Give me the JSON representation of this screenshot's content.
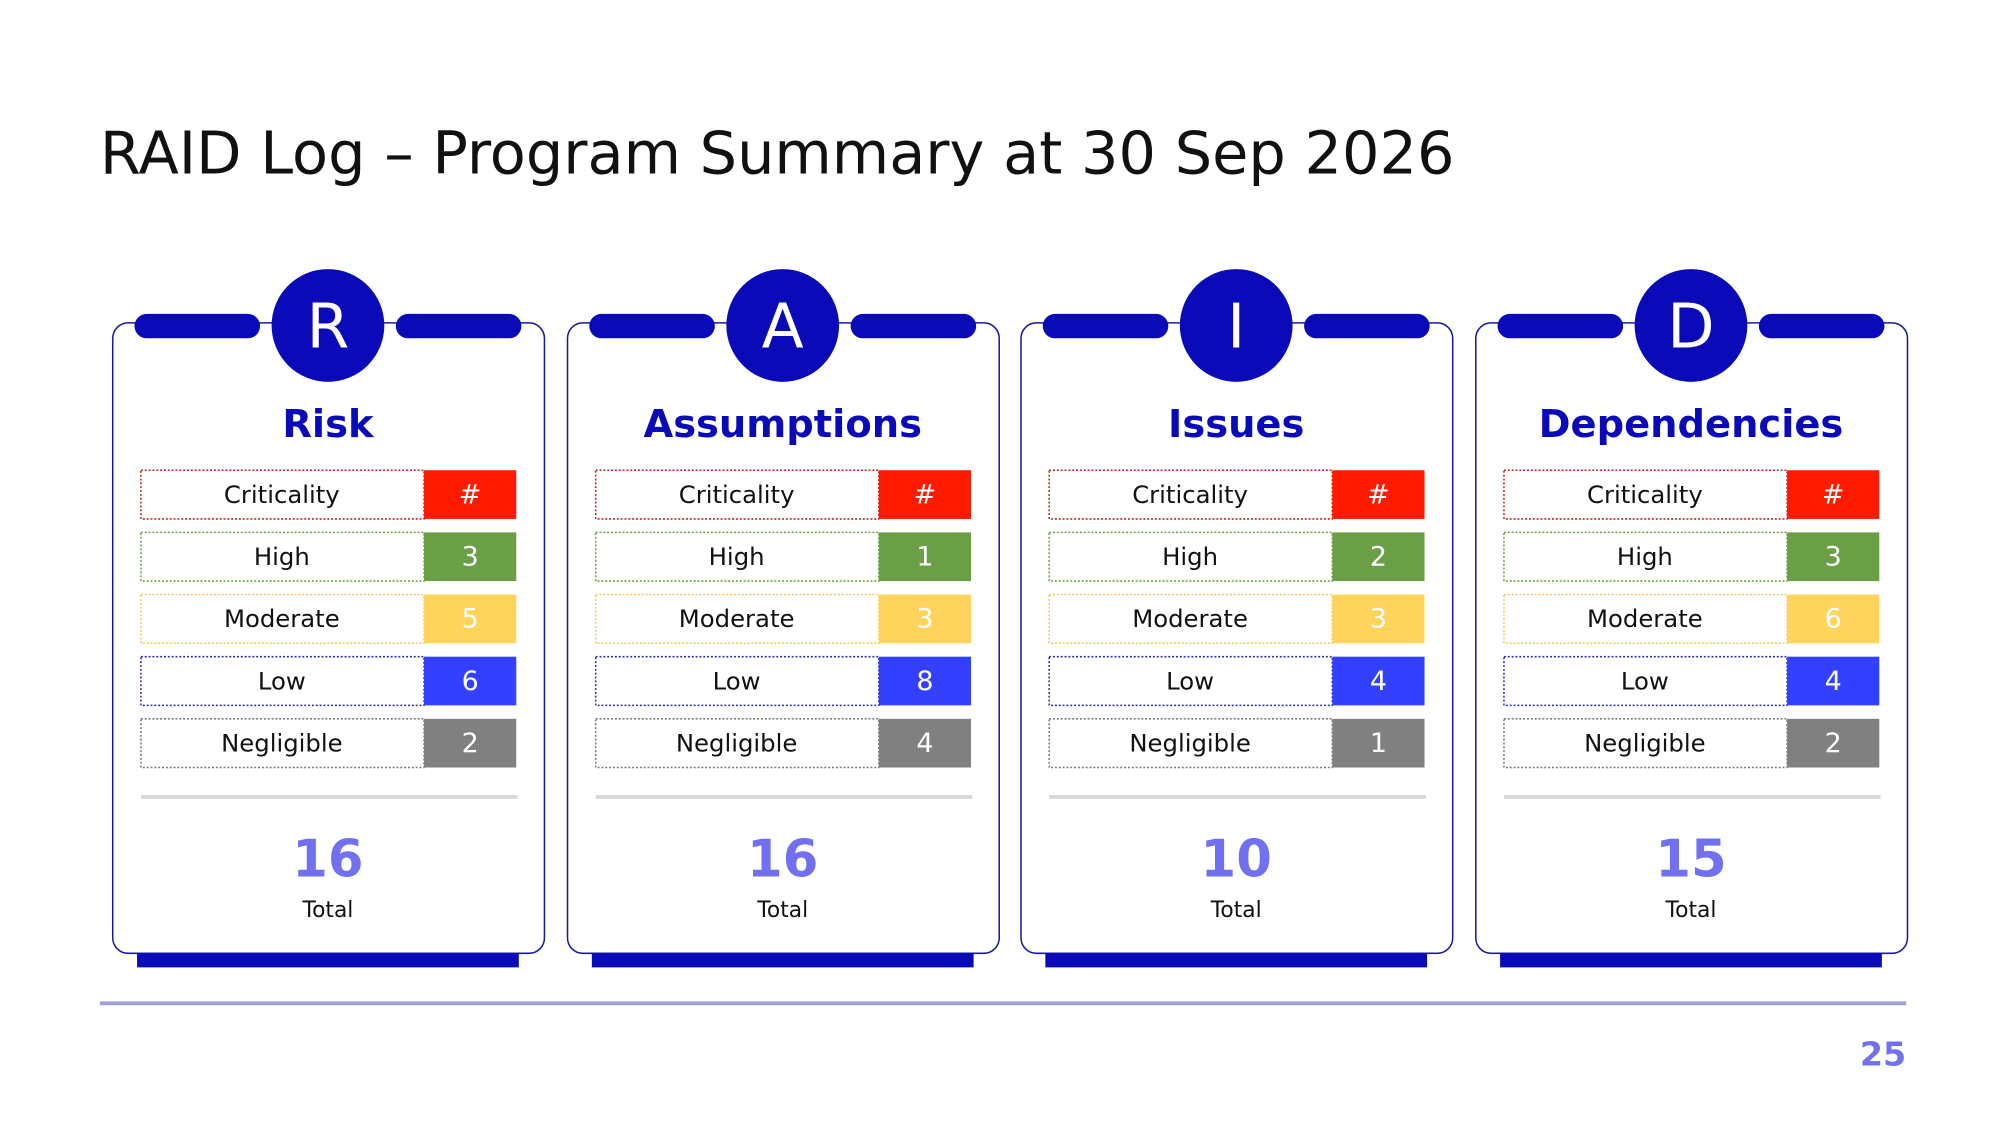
{
  "header": {
    "title": "RAID Log – Program Summary at 30 Sep 2026"
  },
  "cards": [
    {
      "letter": "R",
      "name": "Risk",
      "rows": [
        [
          "Criticality",
          "#"
        ],
        [
          "High",
          3
        ],
        [
          "Moderate",
          5
        ],
        [
          "Low",
          6
        ],
        [
          "Negligible",
          2
        ]
      ],
      "total": 16,
      "total_label": "Total"
    },
    {
      "letter": "A",
      "name": "Assumptions",
      "rows": [
        [
          "Criticality",
          "#"
        ],
        [
          "High",
          1
        ],
        [
          "Moderate",
          3
        ],
        [
          "Low",
          8
        ],
        [
          "Negligible",
          4
        ]
      ],
      "total": 16,
      "total_label": "Total"
    },
    {
      "letter": "I",
      "name": "Issues",
      "rows": [
        [
          "Criticality",
          "#"
        ],
        [
          "High",
          2
        ],
        [
          "Moderate",
          3
        ],
        [
          "Low",
          4
        ],
        [
          "Negligible",
          1
        ]
      ],
      "total": 10,
      "total_label": "Total"
    },
    {
      "letter": "D",
      "name": "Dependencies",
      "rows": [
        [
          "Criticality",
          "#"
        ],
        [
          "High",
          3
        ],
        [
          "Moderate",
          6
        ],
        [
          "Low",
          4
        ],
        [
          "Negligible",
          2
        ]
      ],
      "total": 15,
      "total_label": "Total"
    }
  ],
  "footer": {
    "page_number": 25
  }
}
